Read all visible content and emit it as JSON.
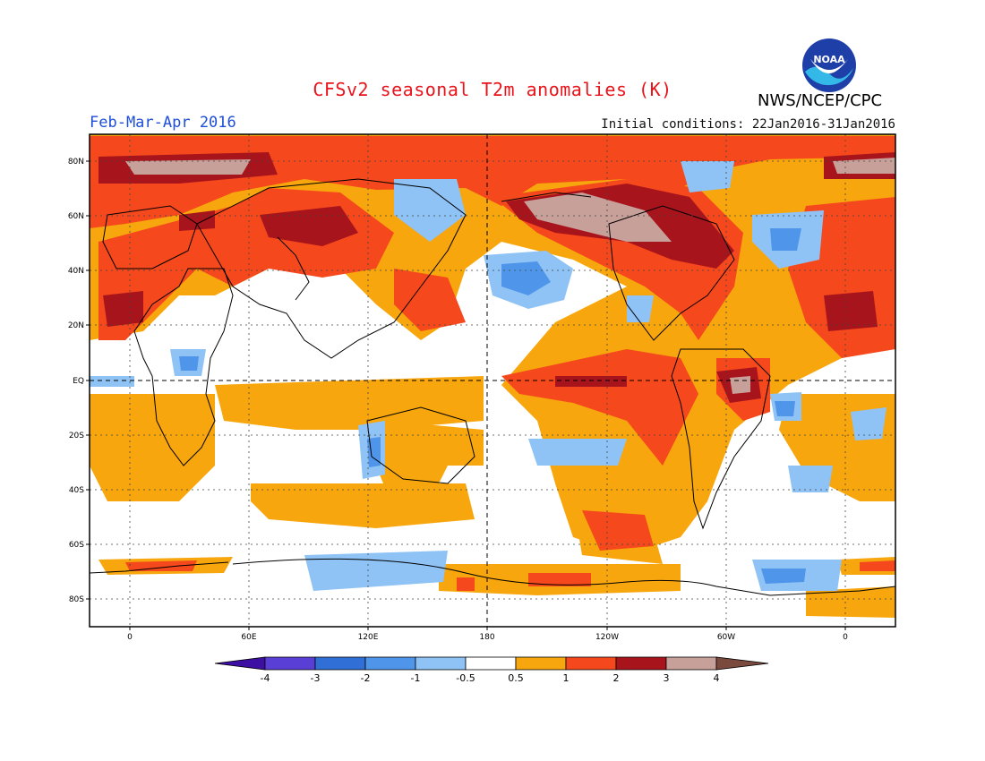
{
  "title": "CFSv2 seasonal T2m anomalies (K)",
  "period": "Feb-Mar-Apr 2016",
  "initial_conditions": "Initial conditions: 22Jan2016-31Jan2016",
  "agency": "NWS/NCEP/CPC",
  "logo_text": "NOAA",
  "map": {
    "lat_labels": [
      "80N",
      "60N",
      "40N",
      "20N",
      "EQ",
      "20S",
      "40S",
      "60S",
      "80S"
    ],
    "lon_labels": [
      "0",
      "60E",
      "120E",
      "180",
      "120W",
      "60W",
      "0"
    ]
  },
  "legend": {
    "labels": [
      "-4",
      "-3",
      "-2",
      "-1",
      "-0.5",
      "0.5",
      "1",
      "2",
      "3",
      "4"
    ],
    "colors": [
      "#3d0fa3",
      "#5a3fd6",
      "#2f6fd6",
      "#4f96ea",
      "#8fc3f5",
      "#ffffff",
      "#f7a60d",
      "#f5481c",
      "#a8141b",
      "#c8a09a",
      "#7a4a3e"
    ]
  },
  "colors": {
    "title": "#e8141b",
    "period": "#1f4ed8",
    "warm1": "#f7a60d",
    "warm2": "#f5481c",
    "warm3": "#a8141b",
    "warm4": "#c8a09a",
    "cool1": "#8fc3f5",
    "cool2": "#4f96ea"
  }
}
